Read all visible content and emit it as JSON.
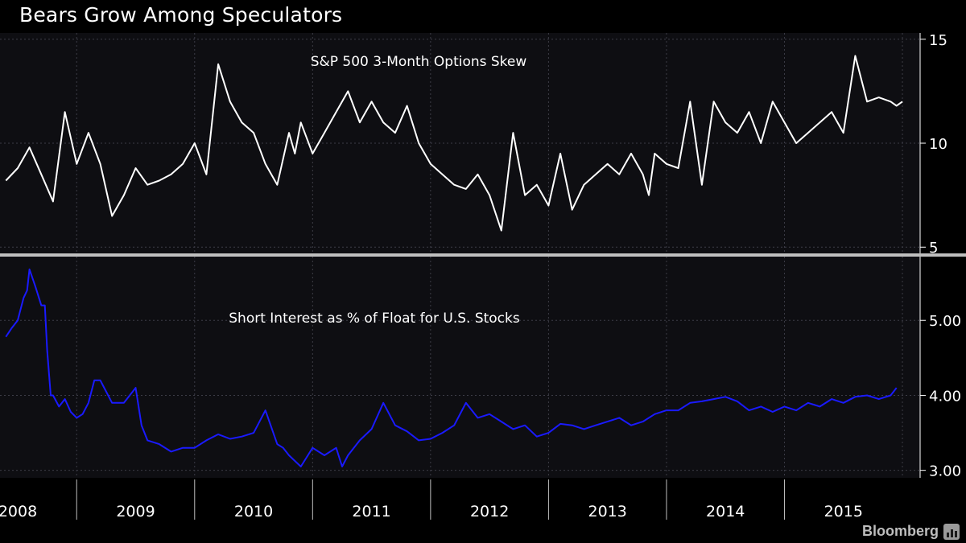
{
  "title": "Bears Grow Among Speculators",
  "brand": "Bloomberg",
  "brand_icon": "bar-chart-icon",
  "colors": {
    "skew_line": "#ffffff",
    "short_interest_line": "#1a1aff",
    "panel_bg": "#0e0e12",
    "grid": "#3c3c46",
    "divider": "#bfbfbf",
    "text": "#ffffff"
  },
  "chart_data": [
    {
      "type": "line",
      "title": "S&P 500 3-Month Options Skew",
      "series": [
        {
          "name": "S&P 500 3-Month Options Skew",
          "x": [
            2007.9,
            2008.0,
            2008.1,
            2008.2,
            2008.3,
            2008.4,
            2008.5,
            2008.6,
            2008.7,
            2008.8,
            2008.9,
            2009.0,
            2009.1,
            2009.2,
            2009.3,
            2009.4,
            2009.5,
            2009.6,
            2009.7,
            2009.8,
            2009.9,
            2010.0,
            2010.1,
            2010.2,
            2010.3,
            2010.35,
            2010.4,
            2010.5,
            2010.6,
            2010.7,
            2010.8,
            2010.9,
            2011.0,
            2011.1,
            2011.2,
            2011.3,
            2011.4,
            2011.5,
            2011.6,
            2011.7,
            2011.8,
            2011.9,
            2012.0,
            2012.1,
            2012.2,
            2012.3,
            2012.4,
            2012.5,
            2012.6,
            2012.7,
            2012.8,
            2012.9,
            2013.0,
            2013.1,
            2013.2,
            2013.3,
            2013.35,
            2013.4,
            2013.5,
            2013.6,
            2013.7,
            2013.8,
            2013.9,
            2014.0,
            2014.1,
            2014.2,
            2014.3,
            2014.4,
            2014.5,
            2014.6,
            2014.7,
            2014.8,
            2014.9,
            2015.0,
            2015.1,
            2015.2,
            2015.3,
            2015.4,
            2015.45,
            2015.5
          ],
          "values": [
            8.2,
            8.8,
            9.8,
            8.5,
            7.2,
            11.5,
            9.0,
            10.5,
            9.0,
            6.5,
            7.5,
            8.8,
            8.0,
            8.2,
            8.5,
            9.0,
            10.0,
            8.5,
            13.8,
            12.0,
            11.0,
            10.5,
            9.0,
            8.0,
            10.5,
            9.5,
            11.0,
            9.5,
            10.5,
            11.5,
            12.5,
            11.0,
            12.0,
            11.0,
            10.5,
            11.8,
            10.0,
            9.0,
            8.5,
            8.0,
            7.8,
            8.5,
            7.5,
            5.8,
            10.5,
            7.5,
            8.0,
            7.0,
            9.5,
            6.8,
            8.0,
            8.5,
            9.0,
            8.5,
            9.5,
            8.5,
            7.5,
            9.5,
            9.0,
            8.8,
            12.0,
            8.0,
            12.0,
            11.0,
            10.5,
            11.5,
            10.0,
            12.0,
            11.0,
            10.0,
            10.5,
            11.0,
            11.5,
            10.5,
            14.2,
            12.0,
            12.2,
            12.0,
            11.8,
            12.0
          ]
        }
      ],
      "ylim": [
        4.7,
        15.3
      ],
      "yticks": [
        "5",
        "10",
        "15"
      ]
    },
    {
      "type": "line",
      "title": "Short Interest as % of Float for U.S. Stocks",
      "series": [
        {
          "name": "Short Interest as % of Float for U.S. Stocks",
          "x": [
            2007.9,
            2007.95,
            2008.0,
            2008.05,
            2008.08,
            2008.1,
            2008.15,
            2008.2,
            2008.23,
            2008.25,
            2008.28,
            2008.3,
            2008.35,
            2008.4,
            2008.45,
            2008.5,
            2008.55,
            2008.6,
            2008.65,
            2008.7,
            2008.8,
            2008.9,
            2009.0,
            2009.05,
            2009.1,
            2009.2,
            2009.3,
            2009.4,
            2009.5,
            2009.6,
            2009.7,
            2009.8,
            2009.9,
            2010.0,
            2010.1,
            2010.2,
            2010.25,
            2010.3,
            2010.4,
            2010.5,
            2010.6,
            2010.7,
            2010.75,
            2010.8,
            2010.9,
            2011.0,
            2011.1,
            2011.2,
            2011.3,
            2011.4,
            2011.5,
            2011.6,
            2011.7,
            2011.8,
            2011.9,
            2012.0,
            2012.1,
            2012.2,
            2012.3,
            2012.4,
            2012.5,
            2012.6,
            2012.7,
            2012.8,
            2012.9,
            2013.0,
            2013.1,
            2013.2,
            2013.3,
            2013.4,
            2013.5,
            2013.6,
            2013.7,
            2013.8,
            2013.9,
            2014.0,
            2014.1,
            2014.2,
            2014.3,
            2014.4,
            2014.5,
            2014.6,
            2014.7,
            2014.8,
            2014.9,
            2015.0,
            2015.1,
            2015.2,
            2015.3,
            2015.4,
            2015.45
          ],
          "values": [
            4.78,
            4.9,
            5.0,
            5.3,
            5.4,
            5.68,
            5.45,
            5.2,
            5.2,
            4.6,
            4.0,
            4.0,
            3.85,
            3.95,
            3.78,
            3.7,
            3.75,
            3.9,
            4.2,
            4.2,
            3.9,
            3.9,
            4.1,
            3.6,
            3.4,
            3.35,
            3.25,
            3.3,
            3.3,
            3.4,
            3.48,
            3.42,
            3.45,
            3.5,
            3.8,
            3.35,
            3.3,
            3.2,
            3.05,
            3.3,
            3.2,
            3.3,
            3.05,
            3.2,
            3.4,
            3.55,
            3.9,
            3.6,
            3.52,
            3.4,
            3.42,
            3.5,
            3.6,
            3.9,
            3.7,
            3.75,
            3.65,
            3.55,
            3.6,
            3.45,
            3.5,
            3.62,
            3.6,
            3.55,
            3.6,
            3.65,
            3.7,
            3.6,
            3.65,
            3.75,
            3.8,
            3.8,
            3.9,
            3.92,
            3.95,
            3.98,
            3.92,
            3.8,
            3.85,
            3.78,
            3.85,
            3.8,
            3.9,
            3.85,
            3.95,
            3.9,
            3.98,
            4.0,
            3.95,
            4.0,
            4.1
          ]
        }
      ],
      "ylim": [
        2.9,
        5.85
      ],
      "yticks": [
        "3.00",
        "4.00",
        "5.00"
      ]
    }
  ],
  "x_axis": {
    "ticks": [
      "2008",
      "2009",
      "2010",
      "2011",
      "2012",
      "2013",
      "2014",
      "2015"
    ]
  }
}
